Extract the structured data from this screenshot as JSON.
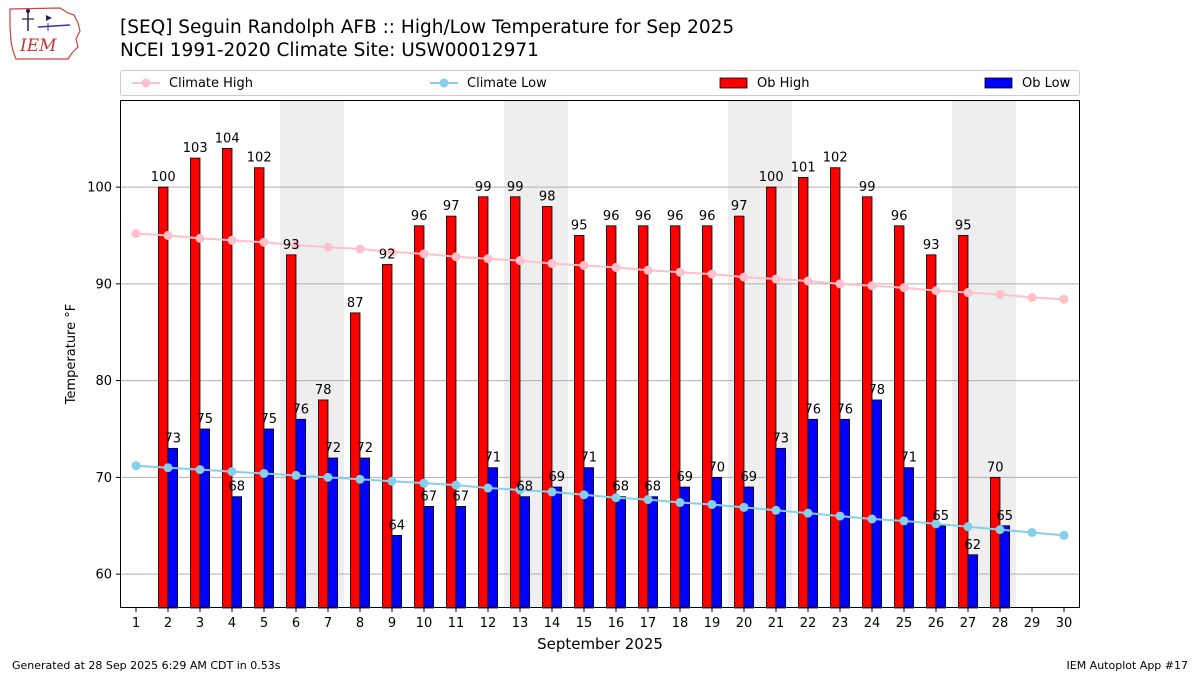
{
  "page": {
    "title_line1": "[SEQ] Seguin Randolph AFB :: High/Low Temperature for Sep 2025",
    "title_line2": "NCEI 1991-2020 Climate Site: USW00012971",
    "footer_left": "Generated at 28 Sep 2025 6:29 AM CDT in 0.53s",
    "footer_right": "IEM Autoplot App #17",
    "logo_text": "IEM"
  },
  "legend": [
    {
      "label": "Climate High",
      "color": "#ffc0cb",
      "kind": "line"
    },
    {
      "label": "Climate Low",
      "color": "#87ceeb",
      "kind": "line"
    },
    {
      "label": "Ob High",
      "color": "#ff0000",
      "kind": "bar"
    },
    {
      "label": "Ob Low",
      "color": "#0000ff",
      "kind": "bar"
    }
  ],
  "chart_data": {
    "type": "bar",
    "xlabel": "September 2025",
    "ylabel": "Temperature °F",
    "x": [
      1,
      2,
      3,
      4,
      5,
      6,
      7,
      8,
      9,
      10,
      11,
      12,
      13,
      14,
      15,
      16,
      17,
      18,
      19,
      20,
      21,
      22,
      23,
      24,
      25,
      26,
      27,
      28,
      29,
      30
    ],
    "xlim": [
      0.5,
      30.5
    ],
    "ylim": [
      56.5,
      109.0
    ],
    "yticks": [
      60,
      70,
      80,
      90,
      100
    ],
    "grid": "horizontal",
    "weekend_shading": [
      [
        6,
        7
      ],
      [
        13,
        14
      ],
      [
        20,
        21
      ],
      [
        27,
        28
      ]
    ],
    "weekend_color": "#eeeeee",
    "series": [
      {
        "name": "Ob High",
        "type": "bar",
        "color": "#ff0000",
        "values": [
          null,
          100,
          103,
          104,
          102,
          93,
          78,
          87,
          92,
          96,
          97,
          99,
          99,
          98,
          95,
          96,
          96,
          96,
          96,
          97,
          100,
          101,
          102,
          99,
          96,
          93,
          95,
          70,
          null,
          null
        ]
      },
      {
        "name": "Ob Low",
        "type": "bar",
        "color": "#0000ff",
        "values": [
          null,
          73,
          75,
          68,
          75,
          76,
          72,
          72,
          64,
          67,
          67,
          71,
          68,
          69,
          71,
          68,
          68,
          69,
          70,
          69,
          73,
          76,
          76,
          78,
          71,
          65,
          62,
          65,
          null,
          null
        ]
      },
      {
        "name": "Climate High",
        "type": "line",
        "color": "#ffc0cb",
        "values": [
          95.2,
          95.0,
          94.7,
          94.5,
          94.3,
          94.0,
          93.8,
          93.6,
          93.3,
          93.1,
          92.8,
          92.6,
          92.4,
          92.1,
          91.9,
          91.7,
          91.4,
          91.2,
          91.0,
          90.7,
          90.5,
          90.3,
          90.0,
          89.8,
          89.6,
          89.3,
          89.1,
          88.9,
          88.6,
          88.4
        ]
      },
      {
        "name": "Climate Low",
        "type": "line",
        "color": "#87ceeb",
        "values": [
          71.2,
          71.0,
          70.8,
          70.6,
          70.4,
          70.2,
          70.0,
          69.8,
          69.6,
          69.4,
          69.2,
          68.9,
          68.7,
          68.5,
          68.2,
          67.9,
          67.7,
          67.4,
          67.2,
          66.9,
          66.6,
          66.3,
          66.0,
          65.7,
          65.5,
          65.2,
          64.9,
          64.6,
          64.3,
          64.0
        ]
      }
    ]
  }
}
